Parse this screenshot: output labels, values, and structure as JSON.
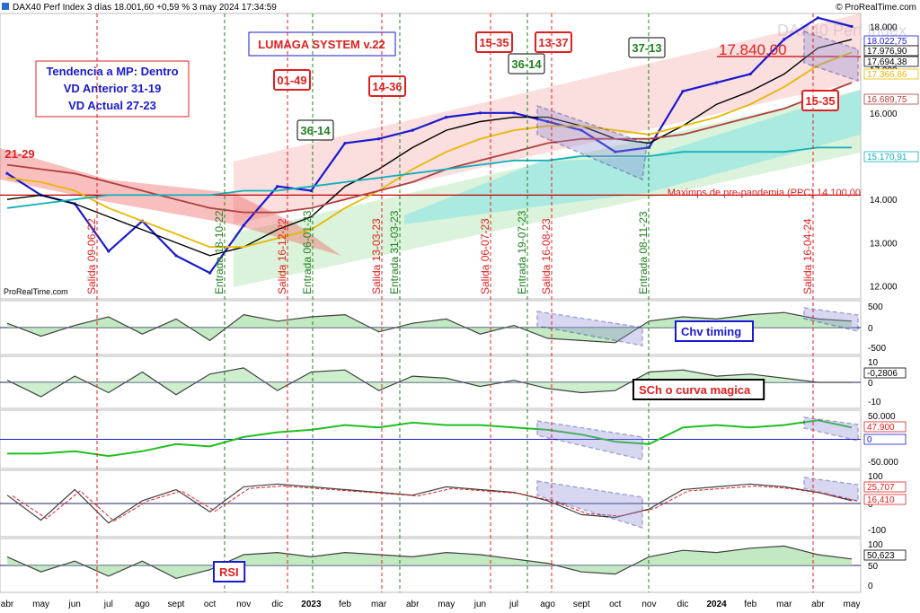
{
  "header": {
    "title": "DAX40 Perf Index 3 días 18.001,60 +0,59 % 3 may 2024 17:34:59",
    "brand": "© ProRealTime.com",
    "watermark_small": "ProRealTime.com",
    "watermark_big": "DAX40 Perf Index"
  },
  "colors": {
    "price_line": "#1a1ad0",
    "sma": "#000000",
    "ema_yellow": "#e8b800",
    "ema_brown": "#b04040",
    "ema_cyan": "#10b0b8",
    "exit_red": "#e02020",
    "entry_green": "#208020",
    "channel_red": "#f4a0a0",
    "channel_green": "#b8e8b8",
    "cloud_cyan": "#70e0e8"
  },
  "boxes": {
    "system": "LUMAGA SYSTEM v.22",
    "trend_l1": "Tendencia a MP: Dentro",
    "trend_l2": "VD Anterior 31-19",
    "trend_l3": "VD Actual 27-23",
    "price_label": "17.840,00",
    "support_label": "Maximps de pre-pandemia (PPC) 14.100,00"
  },
  "signals": [
    {
      "text": "21-29",
      "kind": "red"
    },
    {
      "text": "01-49",
      "kind": "redbox"
    },
    {
      "text": "14-36",
      "kind": "redbox"
    },
    {
      "text": "36-14",
      "kind": "green"
    },
    {
      "text": "15-35",
      "kind": "redbox"
    },
    {
      "text": "13-37",
      "kind": "redbox"
    },
    {
      "text": "36-14",
      "kind": "greendark"
    },
    {
      "text": "37-13",
      "kind": "green"
    },
    {
      "text": "15-35",
      "kind": "redbox"
    }
  ],
  "vertical_labels": [
    {
      "text": "Salida 09-06-22",
      "kind": "exit"
    },
    {
      "text": "Entrada 18-10-22",
      "kind": "entry"
    },
    {
      "text": "Salida 16-12-22",
      "kind": "exit"
    },
    {
      "text": "Entrada 06-01-23",
      "kind": "entry"
    },
    {
      "text": "Salida 13-03-23",
      "kind": "exit"
    },
    {
      "text": "Entrada 31-03-23",
      "kind": "entry"
    },
    {
      "text": "Salida 06-07-23",
      "kind": "exit"
    },
    {
      "text": "Entrada 19-07-23",
      "kind": "entry"
    },
    {
      "text": "Salida 16-08-23",
      "kind": "exit"
    },
    {
      "text": "Entrada 08-11-23",
      "kind": "entry"
    },
    {
      "text": "Salida 16-04-24",
      "kind": "exit"
    }
  ],
  "price_axis": {
    "ticks": [
      "18.000",
      "17.000",
      "16.000",
      "15.000",
      "14.000",
      "13.000",
      "12.000"
    ],
    "tags": [
      {
        "text": "18.022,75",
        "color": "#1a1ad0"
      },
      {
        "text": "17.976,90",
        "color": "#000000"
      },
      {
        "text": "17.694,38",
        "color": "#000000"
      },
      {
        "text": "17.366,86",
        "color": "#e8b800"
      },
      {
        "text": "16.689,75",
        "color": "#b04040"
      },
      {
        "text": "15.170,91",
        "color": "#10b0b8"
      }
    ]
  },
  "panels": [
    {
      "label": "Chv timing",
      "ticks": [
        "500",
        "0",
        "-500"
      ],
      "tags": [],
      "color": "#1a1ad0"
    },
    {
      "label": "SCh o curva magica",
      "ticks": [
        "10",
        "0",
        "-10"
      ],
      "tags": [
        {
          "text": "-0,2806",
          "color": "#000000"
        }
      ],
      "color": "#e02020"
    },
    {
      "label": "",
      "ticks": [
        "50.000",
        "0",
        "-50.000"
      ],
      "tags": [
        {
          "text": "47.900",
          "color": "#e02020"
        },
        {
          "text": "0",
          "color": "#1a1ad0"
        }
      ],
      "color": "#000"
    },
    {
      "label": "",
      "ticks": [
        "100",
        "0",
        "-100"
      ],
      "tags": [
        {
          "text": "25,707",
          "color": "#e02020"
        },
        {
          "text": "16,410",
          "color": "#e02020"
        }
      ],
      "color": "#000"
    },
    {
      "label": "RSI",
      "ticks": [
        "100",
        "50",
        "0"
      ],
      "tags": [
        {
          "text": "50,623",
          "color": "#000000"
        }
      ],
      "color": "#e02020"
    }
  ],
  "x_axis": {
    "labels": [
      "abr",
      "may",
      "jun",
      "jul",
      "ago",
      "sept",
      "oct",
      "nov",
      "dic",
      "2023",
      "feb",
      "mar",
      "abr",
      "may",
      "jun",
      "jul",
      "ago",
      "sept",
      "oct",
      "nov",
      "dic",
      "2024",
      "feb",
      "mar",
      "abr",
      "may"
    ]
  },
  "chart_data": {
    "type": "line",
    "title": "DAX40 Perf Index 3 días",
    "x": [
      "abr 2022",
      "may 2022",
      "jun 2022",
      "jul 2022",
      "ago 2022",
      "sept 2022",
      "oct 2022",
      "nov 2022",
      "dic 2022",
      "ene 2023",
      "feb 2023",
      "mar 2023",
      "abr 2023",
      "may 2023",
      "jun 2023",
      "jul 2023",
      "ago 2023",
      "sept 2023",
      "oct 2023",
      "nov 2023",
      "dic 2023",
      "ene 2024",
      "feb 2024",
      "mar 2024",
      "abr 2024",
      "may 2024"
    ],
    "ylim": [
      11700,
      18300
    ],
    "series": [
      {
        "values": [
          14600,
          14100,
          13900,
          12800,
          13500,
          12700,
          12300,
          13400,
          14300,
          14200,
          15300,
          15400,
          15600,
          15900,
          16000,
          16000,
          15800,
          15600,
          15100,
          15200,
          16500,
          16700,
          16900,
          17700,
          18200,
          18000
        ]
      },
      {
        "values": [
          14000,
          14100,
          13900,
          13600,
          13300,
          13000,
          12700,
          12900,
          13300,
          13600,
          14300,
          14700,
          15200,
          15600,
          15800,
          15900,
          15900,
          15700,
          15400,
          15300,
          15700,
          16200,
          16500,
          16900,
          17500,
          17700
        ]
      },
      {
        "values": [
          14500,
          14400,
          14200,
          13800,
          13500,
          13200,
          12900,
          12900,
          13100,
          13300,
          13800,
          14200,
          14700,
          15100,
          15400,
          15600,
          15700,
          15700,
          15600,
          15500,
          15700,
          15900,
          16200,
          16600,
          17100,
          17400
        ]
      },
      {
        "values": [
          14800,
          14700,
          14600,
          14400,
          14200,
          14000,
          13800,
          13700,
          13700,
          13800,
          14000,
          14200,
          14400,
          14700,
          14900,
          15100,
          15300,
          15400,
          15400,
          15400,
          15500,
          15700,
          15900,
          16100,
          16400,
          16700
        ]
      },
      {
        "values": [
          13800,
          13900,
          14000,
          14100,
          14100,
          14100,
          14100,
          14200,
          14200,
          14300,
          14400,
          14500,
          14600,
          14700,
          14800,
          14900,
          14900,
          15000,
          15000,
          15000,
          15100,
          15100,
          15100,
          15100,
          15200,
          15200
        ]
      }
    ],
    "support_level": 14100,
    "last_close": 18001.6,
    "change_pct": 0.59
  }
}
